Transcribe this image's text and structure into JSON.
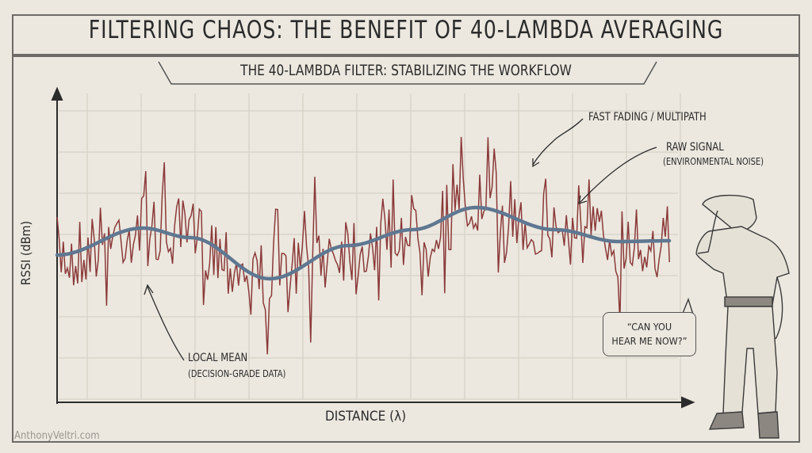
{
  "title": "FILTERING CHAOS: THE BENEFIT OF 40-LAMBDA AVERAGING",
  "subtitle": "THE 40-LAMBDA FILTER: STABILIZING THE WORKFLOW",
  "axes": {
    "y_label": "RSSI (dBm)",
    "x_label": "DISTANCE (λ)"
  },
  "annotations": {
    "fast_fading": "FAST FADING / MULTIPATH",
    "raw_signal": "RAW SIGNAL",
    "raw_signal_note": "(ENVIRONMENTAL NOISE)",
    "local_mean": "LOCAL MEAN",
    "local_mean_note": "(DECISION-GRADE DATA)"
  },
  "speech_bubble": {
    "line1": "“CAN YOU",
    "line2": "HEAR ME NOW?”"
  },
  "watermark": "AnthonyVeltri.com",
  "colors": {
    "raw_signal": "#8b3a3a",
    "local_mean": "#5f7791",
    "paper": "#ece8df",
    "ink": "#2b2b2b"
  }
}
